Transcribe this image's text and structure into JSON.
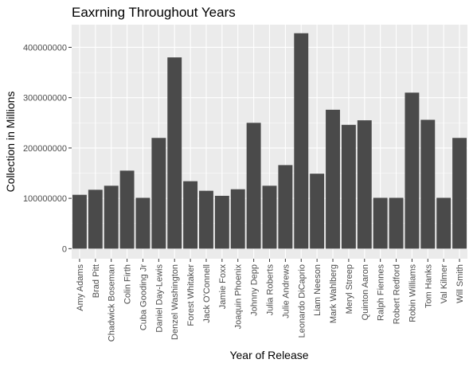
{
  "chart_data": {
    "type": "bar",
    "title": "Eaxrning Throughout Years",
    "xlabel": "Year of Release",
    "ylabel": "Collection in Millions",
    "ylim": [
      -20000000,
      445000000
    ],
    "yticks": [
      0,
      100000000,
      200000000,
      300000000,
      400000000
    ],
    "ytick_labels": [
      "0",
      "100000000",
      "200000000",
      "300000000",
      "400000000"
    ],
    "grid": true,
    "legend": "none",
    "colors": {
      "panel": "#ebebeb",
      "grid": "#ffffff",
      "bar": "#4a4a4a"
    },
    "categories": [
      "Amy Adams",
      "Brad Pitt",
      "Chadwick Boseman",
      "Colin Firth",
      "Cuba Gooding Jr",
      "Daniel Day-Lewis",
      "Denzel Washington",
      "Forest Whitaker",
      "Jack O'Connell",
      "Jamie Foxx",
      "Joaquin Phoenix",
      "Johnny Depp",
      "Julia Roberts",
      "Julie Andrews",
      "Leonardo DiCaprio",
      "Liam Neeson",
      "Mark Wahlberg",
      "Meryl Streep",
      "Quinton Aaron",
      "Ralph Fiennes",
      "Robert Redford",
      "Robin Williams",
      "Tom Hanks",
      "Val Kilmer",
      "Will Smith"
    ],
    "values": [
      107000000,
      117000000,
      125000000,
      155000000,
      101000000,
      220000000,
      380000000,
      134000000,
      115000000,
      105000000,
      118000000,
      250000000,
      125000000,
      166000000,
      428000000,
      149000000,
      276000000,
      246000000,
      255000000,
      101000000,
      101000000,
      310000000,
      256000000,
      101000000,
      220000000
    ]
  }
}
